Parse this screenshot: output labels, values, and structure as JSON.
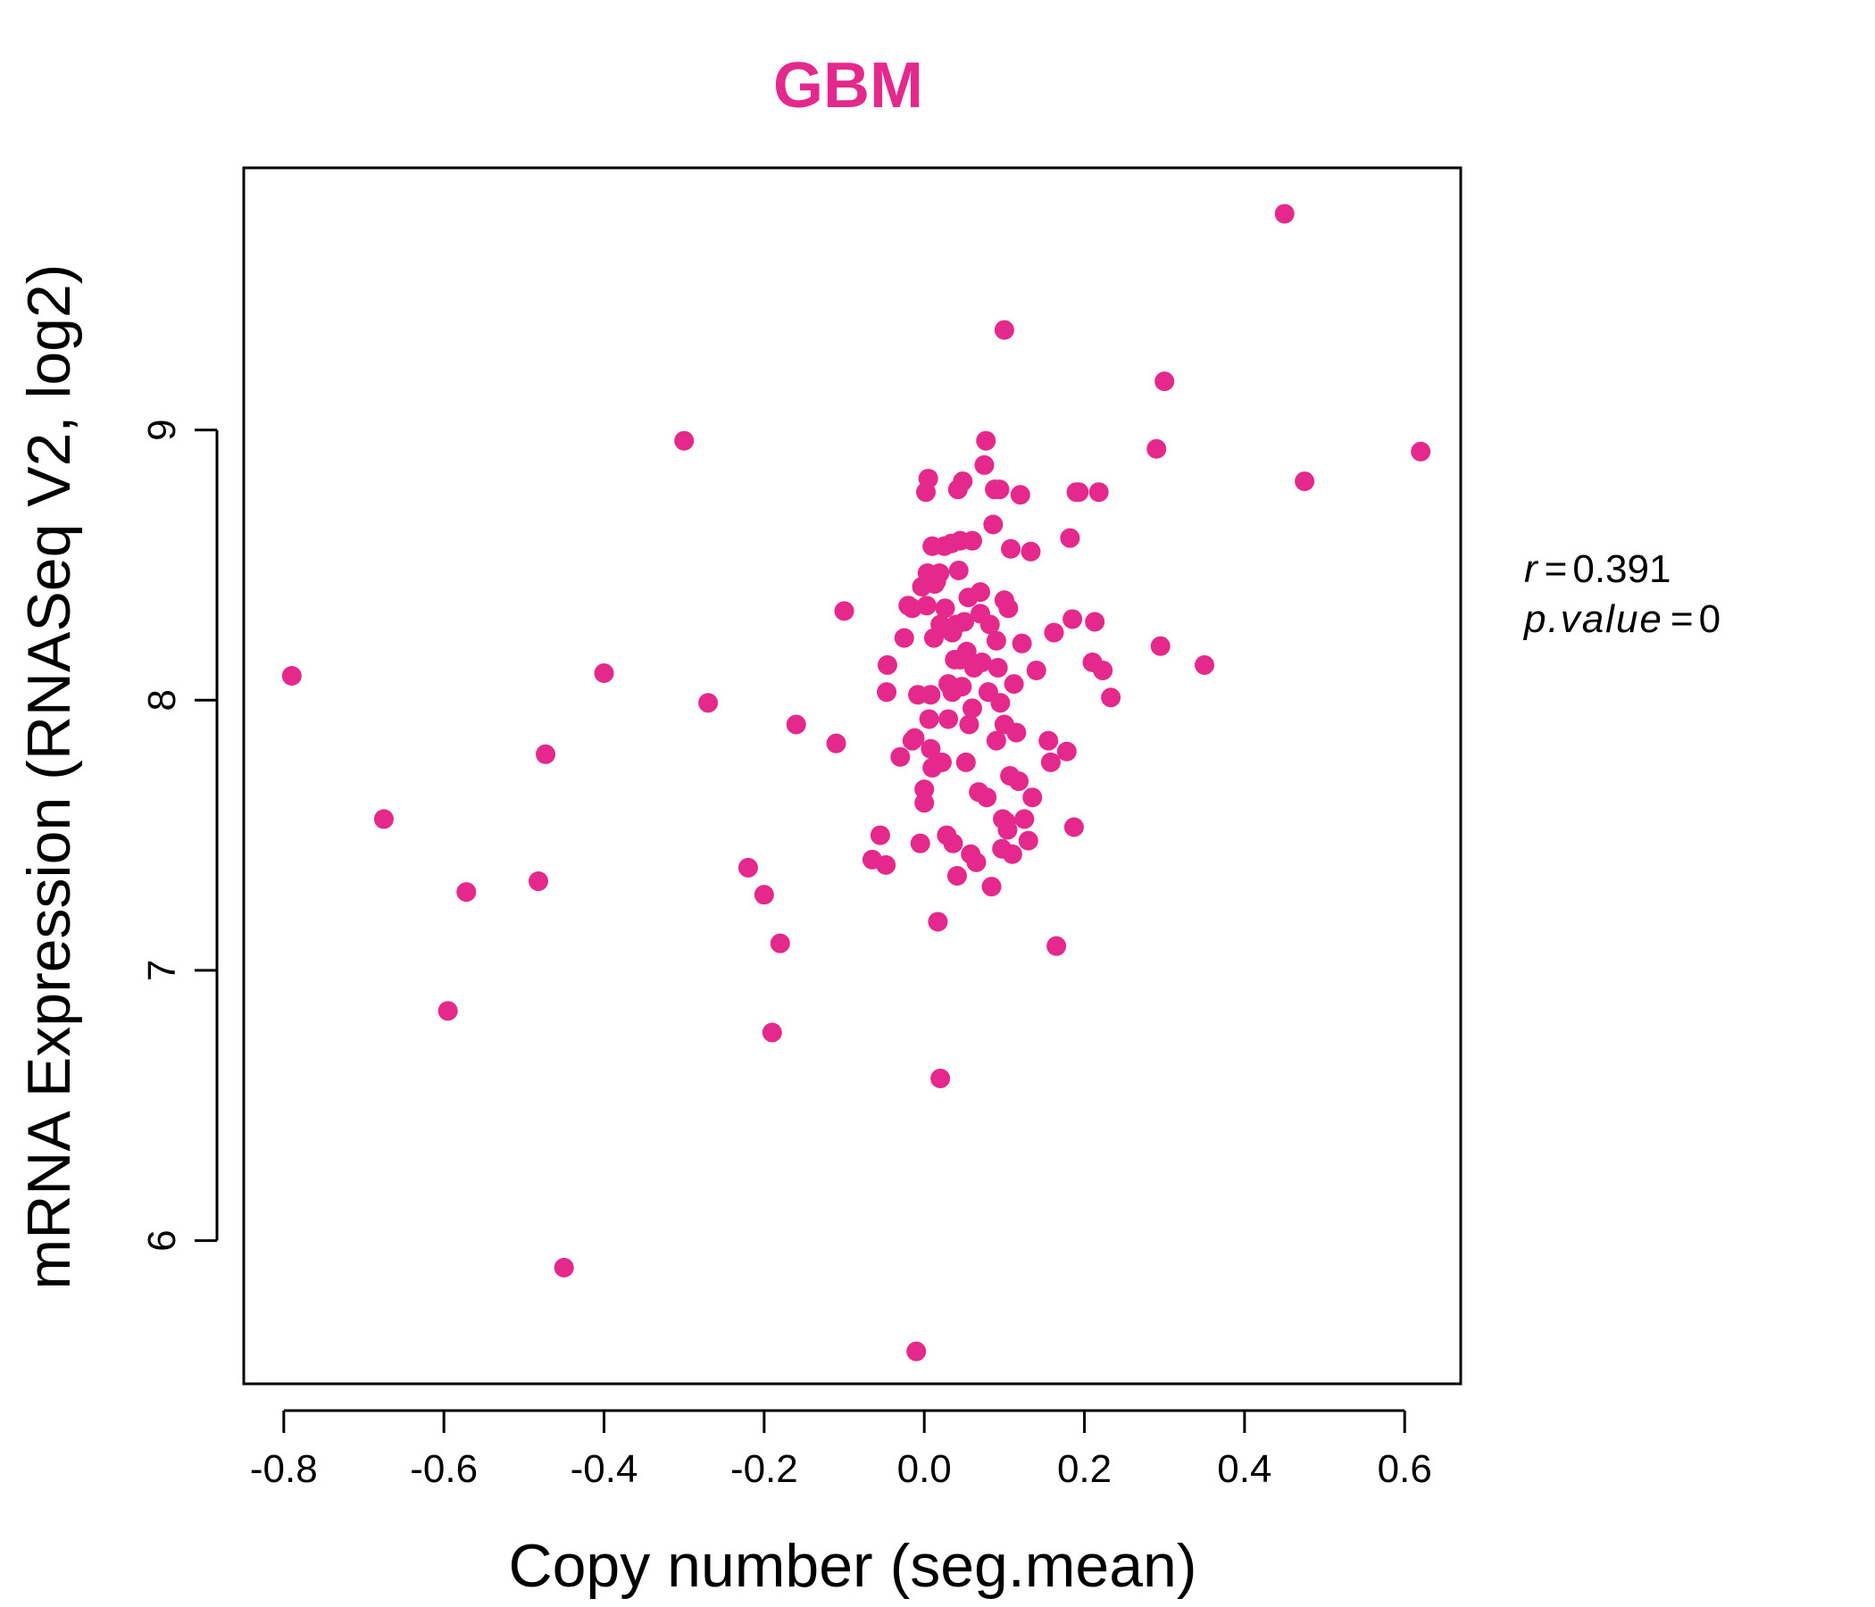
{
  "chart_data": {
    "type": "scatter",
    "title": "GBM",
    "xlabel": "Copy number (seg.mean)",
    "ylabel": "mRNA Expression (RNASeq V2, log2)",
    "xlim": [
      -0.85,
      0.67
    ],
    "ylim": [
      5.47,
      9.97
    ],
    "x_ticks": [
      "-0.8",
      "-0.6",
      "-0.4",
      "-0.2",
      "0.0",
      "0.2",
      "0.4",
      "0.6"
    ],
    "x_tick_values": [
      -0.8,
      -0.6,
      -0.4,
      -0.2,
      0.0,
      0.2,
      0.4,
      0.6
    ],
    "y_ticks": [
      "6",
      "7",
      "8",
      "9"
    ],
    "y_tick_values": [
      6,
      7,
      8,
      9
    ],
    "grid": false,
    "point_color": "#e5288c",
    "stats": {
      "r_symbol": "r",
      "r_value": "0.391",
      "p_symbol": "p.value",
      "p_value": "0"
    },
    "x": [
      -0.79,
      -0.675,
      -0.595,
      -0.572,
      -0.482,
      -0.473,
      -0.45,
      -0.4,
      -0.3,
      -0.27,
      -0.22,
      -0.2,
      -0.19,
      -0.18,
      -0.16,
      -0.11,
      -0.1,
      -0.065,
      -0.055,
      -0.048,
      -0.047,
      -0.046,
      -0.03,
      -0.025,
      -0.02,
      -0.015,
      -0.012,
      -0.01,
      -0.008,
      -0.005,
      -0.003,
      0.0,
      0.0,
      0.002,
      0.003,
      0.004,
      0.005,
      0.006,
      0.008,
      0.01,
      0.012,
      0.013,
      0.015,
      0.017,
      0.019,
      0.02,
      0.022,
      0.025,
      0.026,
      0.028,
      0.03,
      0.03,
      0.032,
      0.034,
      0.035,
      0.036,
      0.038,
      0.04,
      0.041,
      0.042,
      0.043,
      0.045,
      0.047,
      0.048,
      0.05,
      0.052,
      0.053,
      0.055,
      0.056,
      0.058,
      0.06,
      0.062,
      0.065,
      0.068,
      0.07,
      0.072,
      0.075,
      0.077,
      0.078,
      0.08,
      0.082,
      0.084,
      0.086,
      0.088,
      0.09,
      0.09,
      0.092,
      0.094,
      0.095,
      0.097,
      0.098,
      0.1,
      0.1,
      0.102,
      0.104,
      0.105,
      0.107,
      0.108,
      0.11,
      0.112,
      0.115,
      0.118,
      0.12,
      0.122,
      0.125,
      0.13,
      0.133,
      0.135,
      0.14,
      0.155,
      0.158,
      0.162,
      0.165,
      0.178,
      0.182,
      0.185,
      0.187,
      0.19,
      0.193,
      0.21,
      0.213,
      0.218,
      0.223,
      0.233,
      0.29,
      0.295,
      0.3,
      0.35,
      0.45,
      0.475,
      0.62,
      -0.015,
      0.02,
      0.035,
      0.06,
      0.008,
      0.045,
      0.07,
      0.01,
      0.1
    ],
    "y": [
      8.09,
      7.56,
      6.85,
      7.29,
      7.33,
      7.8,
      5.9,
      8.1,
      8.96,
      7.99,
      7.38,
      7.28,
      6.77,
      7.1,
      7.91,
      7.84,
      8.33,
      7.41,
      7.5,
      7.39,
      8.03,
      8.13,
      7.79,
      8.23,
      8.35,
      8.34,
      7.86,
      5.59,
      8.02,
      7.47,
      8.42,
      7.67,
      7.62,
      8.77,
      8.35,
      8.47,
      8.82,
      7.93,
      8.02,
      8.57,
      8.23,
      8.43,
      8.44,
      7.18,
      8.47,
      6.6,
      7.77,
      8.57,
      8.34,
      7.5,
      7.93,
      8.06,
      8.26,
      8.58,
      8.03,
      7.47,
      8.15,
      8.28,
      7.35,
      8.78,
      8.48,
      8.59,
      8.05,
      8.81,
      8.29,
      7.77,
      8.18,
      8.38,
      7.91,
      7.43,
      8.59,
      8.12,
      7.4,
      7.66,
      8.32,
      8.14,
      8.87,
      8.96,
      7.64,
      8.03,
      8.28,
      7.31,
      8.65,
      8.78,
      7.85,
      8.22,
      8.12,
      8.78,
      7.99,
      7.45,
      7.56,
      8.37,
      7.91,
      7.55,
      7.52,
      8.34,
      7.72,
      8.56,
      7.43,
      8.06,
      7.88,
      7.7,
      8.76,
      8.21,
      7.56,
      7.48,
      8.55,
      7.64,
      8.11,
      7.85,
      7.77,
      8.25,
      7.09,
      7.81,
      8.6,
      8.3,
      7.53,
      8.77,
      8.77,
      8.14,
      8.29,
      8.77,
      8.11,
      8.01,
      8.93,
      8.2,
      9.18,
      8.13,
      9.8,
      8.81,
      8.92,
      7.85,
      8.28,
      8.25,
      7.97,
      7.82,
      8.15,
      8.4,
      7.75,
      9.37
    ]
  }
}
